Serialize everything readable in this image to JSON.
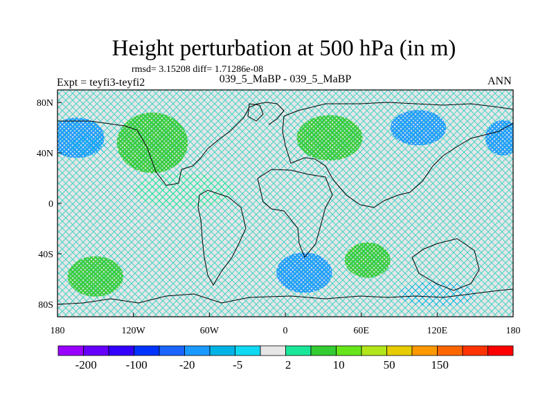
{
  "header": {
    "title": "Height perturbation at 500 hPa (in m)",
    "stats": "rmsd= 3.15208 diff= 1.71286e-08",
    "expt": "Expt = teyfi3-teyfi2",
    "period": "039_5_MaBP - 039_5_MaBP",
    "season": "ANN"
  },
  "map": {
    "projection": "cylindrical-equidistant",
    "lon_range": [
      -180,
      180
    ],
    "lat_range": [
      -90,
      90
    ],
    "pattern": "hatched-fill",
    "x_ticks": [
      {
        "value": -180,
        "label": "180"
      },
      {
        "value": -120,
        "label": "120W"
      },
      {
        "value": -60,
        "label": "60W"
      },
      {
        "value": 0,
        "label": "0"
      },
      {
        "value": 60,
        "label": "60E"
      },
      {
        "value": 120,
        "label": "120E"
      },
      {
        "value": 180,
        "label": "180"
      }
    ],
    "y_ticks": [
      {
        "value": 80,
        "label": "80N"
      },
      {
        "value": 40,
        "label": "40N"
      },
      {
        "value": 0,
        "label": "0"
      },
      {
        "value": -40,
        "label": "40S"
      },
      {
        "value": -80,
        "label": "80S"
      }
    ],
    "anomalies": [
      {
        "lon": -165,
        "lat": 52,
        "rx": 22,
        "ry": 16,
        "level": "negative-strong"
      },
      {
        "lon": -155,
        "lat": 46,
        "rx": 14,
        "ry": 8,
        "level": "negative-weak"
      },
      {
        "lon": -105,
        "lat": 48,
        "rx": 28,
        "ry": 24,
        "level": "positive-strong"
      },
      {
        "lon": 35,
        "lat": 52,
        "rx": 26,
        "ry": 18,
        "level": "positive-strong"
      },
      {
        "lon": 105,
        "lat": 60,
        "rx": 22,
        "ry": 14,
        "level": "negative-strong"
      },
      {
        "lon": 172,
        "lat": 52,
        "rx": 14,
        "ry": 14,
        "level": "negative-strong"
      },
      {
        "lon": -80,
        "lat": 10,
        "rx": 40,
        "ry": 14,
        "level": "positive-weak"
      },
      {
        "lon": 15,
        "lat": -55,
        "rx": 22,
        "ry": 16,
        "level": "negative-strong"
      },
      {
        "lon": 65,
        "lat": -45,
        "rx": 18,
        "ry": 14,
        "level": "positive-strong"
      },
      {
        "lon": -150,
        "lat": -58,
        "rx": 22,
        "ry": 16,
        "level": "positive-strong"
      },
      {
        "lon": 120,
        "lat": -72,
        "rx": 30,
        "ry": 10,
        "level": "negative-weak"
      }
    ]
  },
  "colorbar": {
    "colors": [
      "#9900ff",
      "#6600ff",
      "#3300ff",
      "#0033ff",
      "#1a66ff",
      "#1a99ff",
      "#00b3e6",
      "#0fd9f2",
      "#e6e6e6",
      "#1ae699",
      "#33cc33",
      "#66e61a",
      "#b3e61a",
      "#e6cc00",
      "#ff9900",
      "#ff6600",
      "#ff3300",
      "#ff0000"
    ],
    "labels": [
      {
        "after_box": 1,
        "text": "-200"
      },
      {
        "after_box": 3,
        "text": "-100"
      },
      {
        "after_box": 5,
        "text": "-20"
      },
      {
        "after_box": 7,
        "text": "-5"
      },
      {
        "after_box": 9,
        "text": "2"
      },
      {
        "after_box": 11,
        "text": "10"
      },
      {
        "after_box": 13,
        "text": "50"
      },
      {
        "after_box": 15,
        "text": "150"
      }
    ]
  }
}
